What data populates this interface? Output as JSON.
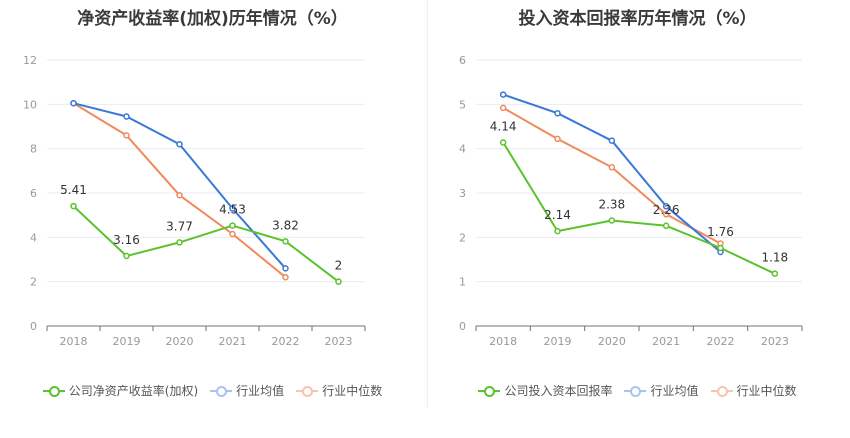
{
  "charts": [
    {
      "title": "净资产收益率(加权)历年情况（%）",
      "legend": [
        "公司净资产收益率(加权)",
        "行业均值",
        "行业中位数"
      ]
    },
    {
      "title": "投入资本回报率历年情况（%）",
      "legend": [
        "公司投入资本回报率",
        "行业均值",
        "行业中位数"
      ]
    }
  ],
  "chart_data": [
    {
      "type": "line",
      "title": "净资产收益率(加权)历年情况（%）",
      "categories": [
        "2018",
        "2019",
        "2020",
        "2021",
        "2022",
        "2023"
      ],
      "ylim": [
        0,
        12
      ],
      "yticks": [
        0,
        2,
        4,
        6,
        8,
        10,
        12
      ],
      "grid": true,
      "legend_position": "bottom",
      "series": [
        {
          "name": "公司净资产收益率(加权)",
          "color": "#5cc22d",
          "values": [
            5.41,
            3.16,
            3.77,
            4.53,
            3.82,
            2
          ],
          "labels": [
            "5.41",
            "3.16",
            "3.77",
            "4.53",
            "3.82",
            "2"
          ]
        },
        {
          "name": "行业均值",
          "color": "#3a78d8",
          "values": [
            10.05,
            9.45,
            8.2,
            5.3,
            2.6,
            null
          ]
        },
        {
          "name": "行业中位数",
          "color": "#f08a5d",
          "values": [
            10.05,
            8.6,
            5.9,
            4.15,
            2.2,
            null
          ]
        }
      ]
    },
    {
      "type": "line",
      "title": "投入资本回报率历年情况（%）",
      "categories": [
        "2018",
        "2019",
        "2020",
        "2021",
        "2022",
        "2023"
      ],
      "ylim": [
        0,
        6
      ],
      "yticks": [
        0,
        1,
        2,
        3,
        4,
        5,
        6
      ],
      "grid": true,
      "legend_position": "bottom",
      "series": [
        {
          "name": "公司投入资本回报率",
          "color": "#5cc22d",
          "values": [
            4.14,
            2.14,
            2.38,
            2.26,
            1.76,
            1.18
          ],
          "labels": [
            "4.14",
            "2.14",
            "2.38",
            "2.26",
            "1.76",
            "1.18"
          ]
        },
        {
          "name": "行业均值",
          "color": "#3a78d8",
          "values": [
            5.22,
            4.8,
            4.18,
            2.7,
            1.67,
            null
          ]
        },
        {
          "name": "行业中位数",
          "color": "#f08a5d",
          "values": [
            4.92,
            4.22,
            3.58,
            2.52,
            1.86,
            null
          ]
        }
      ]
    }
  ]
}
